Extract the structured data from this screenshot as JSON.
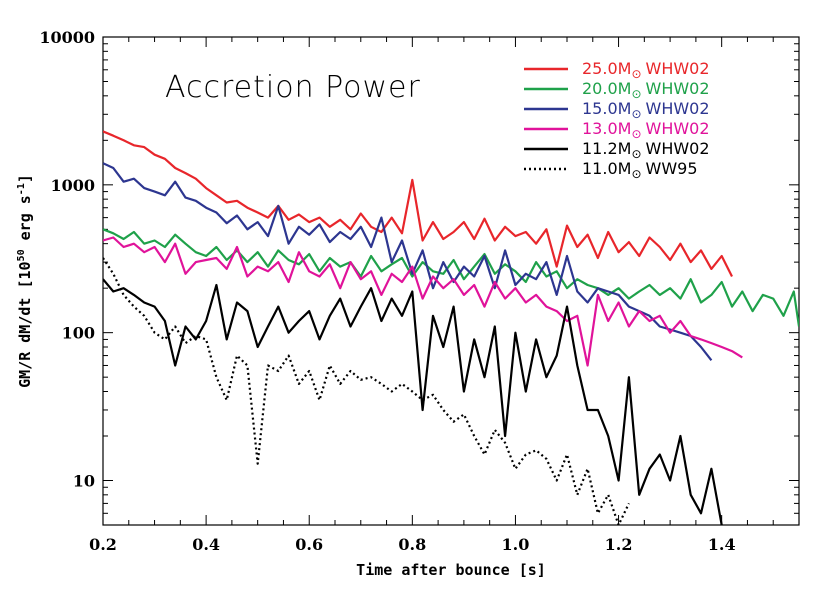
{
  "chart_data": {
    "type": "line",
    "title": "Accretion Power",
    "xlabel": "Time after bounce [s]",
    "ylabel_prefix": "GM/R dM/dt [10",
    "ylabel_exp1": "50",
    "ylabel_mid": " erg s",
    "ylabel_exp2": "-1",
    "ylabel_suffix": "]",
    "xlim": [
      0.2,
      1.55
    ],
    "ylim": [
      5,
      10000
    ],
    "yscale": "log",
    "x_ticks": [
      0.2,
      0.4,
      0.6,
      0.8,
      1.0,
      1.2,
      1.4
    ],
    "x_tick_labels": [
      "0.2",
      "0.4",
      "0.6",
      "0.8",
      "1.0",
      "1.2",
      "1.4"
    ],
    "y_ticks": [
      10,
      100,
      1000,
      10000
    ],
    "y_tick_labels": [
      "10",
      "100",
      "1000",
      "10000"
    ],
    "legend_position": "top-right",
    "series": [
      {
        "name": "25.0M",
        "suffix": "WHW02",
        "color": "#e8262b",
        "dash": "solid",
        "x": [
          0.2,
          0.22,
          0.24,
          0.26,
          0.28,
          0.3,
          0.32,
          0.34,
          0.36,
          0.38,
          0.4,
          0.42,
          0.44,
          0.46,
          0.48,
          0.5,
          0.52,
          0.54,
          0.56,
          0.58,
          0.6,
          0.62,
          0.64,
          0.66,
          0.68,
          0.7,
          0.72,
          0.74,
          0.76,
          0.78,
          0.8,
          0.82,
          0.84,
          0.86,
          0.88,
          0.9,
          0.92,
          0.94,
          0.96,
          0.98,
          1.0,
          1.02,
          1.04,
          1.06,
          1.08,
          1.1,
          1.12,
          1.14,
          1.16,
          1.18,
          1.2,
          1.22,
          1.24,
          1.26,
          1.28,
          1.3,
          1.32,
          1.34,
          1.36,
          1.38,
          1.4,
          1.42
        ],
        "y": [
          2300,
          2150,
          2000,
          1850,
          1800,
          1600,
          1500,
          1300,
          1200,
          1100,
          950,
          850,
          760,
          780,
          700,
          650,
          600,
          720,
          580,
          630,
          560,
          600,
          520,
          580,
          500,
          640,
          520,
          480,
          600,
          470,
          1080,
          420,
          560,
          430,
          480,
          560,
          430,
          590,
          420,
          520,
          450,
          480,
          400,
          500,
          280,
          530,
          380,
          460,
          320,
          480,
          350,
          410,
          330,
          440,
          380,
          310,
          400,
          300,
          360,
          270,
          330,
          240
        ]
      },
      {
        "name": "20.0M",
        "suffix": "WHW02",
        "color": "#1fa14a",
        "dash": "solid",
        "x": [
          0.2,
          0.22,
          0.24,
          0.26,
          0.28,
          0.3,
          0.32,
          0.34,
          0.36,
          0.38,
          0.4,
          0.42,
          0.44,
          0.46,
          0.48,
          0.5,
          0.52,
          0.54,
          0.56,
          0.58,
          0.6,
          0.62,
          0.64,
          0.66,
          0.68,
          0.7,
          0.72,
          0.74,
          0.76,
          0.78,
          0.8,
          0.82,
          0.84,
          0.86,
          0.88,
          0.9,
          0.92,
          0.94,
          0.96,
          0.98,
          1.0,
          1.02,
          1.04,
          1.06,
          1.08,
          1.1,
          1.12,
          1.14,
          1.16,
          1.18,
          1.2,
          1.22,
          1.24,
          1.26,
          1.28,
          1.3,
          1.32,
          1.34,
          1.36,
          1.38,
          1.4,
          1.42,
          1.44,
          1.46,
          1.48,
          1.5,
          1.52,
          1.54,
          1.55
        ],
        "y": [
          500,
          470,
          430,
          480,
          400,
          420,
          380,
          460,
          400,
          350,
          330,
          380,
          310,
          360,
          300,
          350,
          280,
          360,
          310,
          290,
          340,
          260,
          320,
          280,
          300,
          240,
          330,
          260,
          290,
          320,
          240,
          300,
          260,
          250,
          310,
          230,
          280,
          340,
          250,
          290,
          260,
          220,
          300,
          240,
          260,
          200,
          230,
          210,
          200,
          180,
          200,
          170,
          190,
          210,
          180,
          200,
          170,
          230,
          160,
          180,
          220,
          150,
          190,
          140,
          180,
          170,
          130,
          190,
          110
        ]
      },
      {
        "name": "15.0M",
        "suffix": "WHW02",
        "color": "#2d3690",
        "dash": "solid",
        "x": [
          0.2,
          0.22,
          0.24,
          0.26,
          0.28,
          0.3,
          0.32,
          0.34,
          0.36,
          0.38,
          0.4,
          0.42,
          0.44,
          0.46,
          0.48,
          0.5,
          0.52,
          0.54,
          0.56,
          0.58,
          0.6,
          0.62,
          0.64,
          0.66,
          0.68,
          0.7,
          0.72,
          0.74,
          0.76,
          0.78,
          0.8,
          0.82,
          0.84,
          0.86,
          0.88,
          0.9,
          0.92,
          0.94,
          0.96,
          0.98,
          1.0,
          1.02,
          1.04,
          1.06,
          1.08,
          1.1,
          1.12,
          1.14,
          1.16,
          1.18,
          1.2,
          1.22,
          1.24,
          1.26,
          1.28,
          1.3,
          1.32,
          1.34,
          1.36,
          1.38
        ],
        "y": [
          1400,
          1300,
          1050,
          1100,
          950,
          900,
          850,
          1050,
          820,
          780,
          700,
          650,
          550,
          620,
          500,
          560,
          450,
          720,
          400,
          520,
          460,
          540,
          410,
          480,
          430,
          520,
          380,
          600,
          300,
          420,
          250,
          360,
          200,
          300,
          220,
          280,
          240,
          330,
          200,
          360,
          210,
          250,
          230,
          300,
          180,
          330,
          190,
          160,
          200,
          190,
          180,
          150,
          140,
          130,
          110,
          105,
          100,
          95,
          80,
          65
        ]
      },
      {
        "name": "13.0M",
        "suffix": "WHW02",
        "color": "#e0139a",
        "dash": "solid",
        "x": [
          0.2,
          0.22,
          0.24,
          0.26,
          0.28,
          0.3,
          0.32,
          0.34,
          0.36,
          0.38,
          0.4,
          0.42,
          0.44,
          0.46,
          0.48,
          0.5,
          0.52,
          0.54,
          0.56,
          0.58,
          0.6,
          0.62,
          0.64,
          0.66,
          0.68,
          0.7,
          0.72,
          0.74,
          0.76,
          0.78,
          0.8,
          0.82,
          0.84,
          0.86,
          0.88,
          0.9,
          0.92,
          0.94,
          0.96,
          0.98,
          1.0,
          1.02,
          1.04,
          1.06,
          1.08,
          1.1,
          1.12,
          1.14,
          1.16,
          1.18,
          1.2,
          1.22,
          1.24,
          1.26,
          1.28,
          1.3,
          1.32,
          1.34,
          1.36,
          1.38,
          1.4,
          1.42,
          1.44
        ],
        "y": [
          420,
          440,
          380,
          400,
          350,
          380,
          300,
          400,
          250,
          300,
          310,
          320,
          270,
          380,
          240,
          280,
          260,
          300,
          220,
          350,
          260,
          240,
          290,
          200,
          300,
          230,
          260,
          180,
          250,
          220,
          280,
          170,
          240,
          200,
          230,
          180,
          210,
          150,
          220,
          170,
          200,
          160,
          180,
          150,
          140,
          120,
          130,
          60,
          180,
          120,
          160,
          110,
          140,
          120,
          130,
          100,
          120,
          95,
          90,
          85,
          80,
          75,
          68
        ]
      },
      {
        "name": "11.2M",
        "suffix": "WHW02",
        "color": "#000000",
        "dash": "solid",
        "x": [
          0.2,
          0.22,
          0.24,
          0.26,
          0.28,
          0.3,
          0.32,
          0.34,
          0.36,
          0.38,
          0.4,
          0.42,
          0.44,
          0.46,
          0.48,
          0.5,
          0.52,
          0.54,
          0.56,
          0.58,
          0.6,
          0.62,
          0.64,
          0.66,
          0.68,
          0.7,
          0.72,
          0.74,
          0.76,
          0.78,
          0.8,
          0.82,
          0.84,
          0.86,
          0.88,
          0.9,
          0.92,
          0.94,
          0.96,
          0.98,
          1.0,
          1.02,
          1.04,
          1.06,
          1.08,
          1.1,
          1.12,
          1.14,
          1.16,
          1.18,
          1.2,
          1.22,
          1.24,
          1.26,
          1.28,
          1.3,
          1.32,
          1.34,
          1.36,
          1.38,
          1.4
        ],
        "y": [
          230,
          190,
          200,
          180,
          160,
          150,
          120,
          60,
          110,
          90,
          120,
          210,
          90,
          160,
          140,
          80,
          110,
          150,
          100,
          120,
          140,
          90,
          130,
          170,
          110,
          150,
          200,
          120,
          170,
          130,
          190,
          30,
          130,
          80,
          150,
          40,
          90,
          50,
          110,
          20,
          100,
          40,
          90,
          50,
          70,
          150,
          60,
          30,
          30,
          20,
          10,
          50,
          8,
          12,
          15,
          10,
          20,
          8,
          6,
          12,
          5
        ]
      },
      {
        "name": "11.0M",
        "suffix": "WW95",
        "color": "#000000",
        "dash": "dotted",
        "x": [
          0.2,
          0.22,
          0.24,
          0.26,
          0.28,
          0.3,
          0.32,
          0.34,
          0.36,
          0.38,
          0.4,
          0.42,
          0.44,
          0.46,
          0.48,
          0.5,
          0.52,
          0.54,
          0.56,
          0.58,
          0.6,
          0.62,
          0.64,
          0.66,
          0.68,
          0.7,
          0.72,
          0.74,
          0.76,
          0.78,
          0.8,
          0.82,
          0.84,
          0.86,
          0.88,
          0.9,
          0.92,
          0.94,
          0.96,
          0.98,
          1.0,
          1.02,
          1.04,
          1.06,
          1.08,
          1.1,
          1.12,
          1.14,
          1.16,
          1.18,
          1.2,
          1.22
        ],
        "y": [
          320,
          250,
          180,
          150,
          130,
          100,
          90,
          110,
          85,
          95,
          90,
          50,
          35,
          70,
          60,
          13,
          60,
          55,
          70,
          45,
          55,
          35,
          60,
          45,
          55,
          48,
          50,
          45,
          40,
          45,
          40,
          35,
          38,
          30,
          25,
          28,
          20,
          15,
          22,
          18,
          12,
          15,
          16,
          14,
          10,
          15,
          8,
          12,
          6,
          8,
          5,
          7
        ]
      }
    ]
  }
}
